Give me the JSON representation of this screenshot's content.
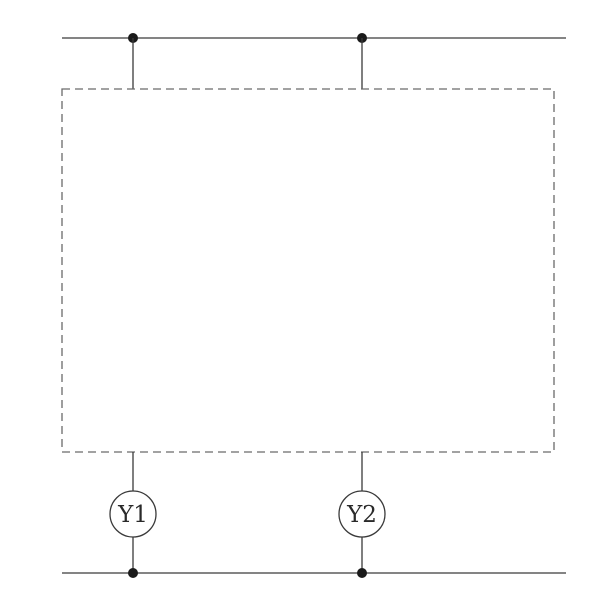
{
  "outputs": [
    {
      "label": "Y1"
    },
    {
      "label": "Y2"
    }
  ],
  "colors": {
    "line": "#3a3a3a",
    "dashed_box": "#6a6a6a",
    "node": "#1a1a1a",
    "background": "#ffffff"
  }
}
